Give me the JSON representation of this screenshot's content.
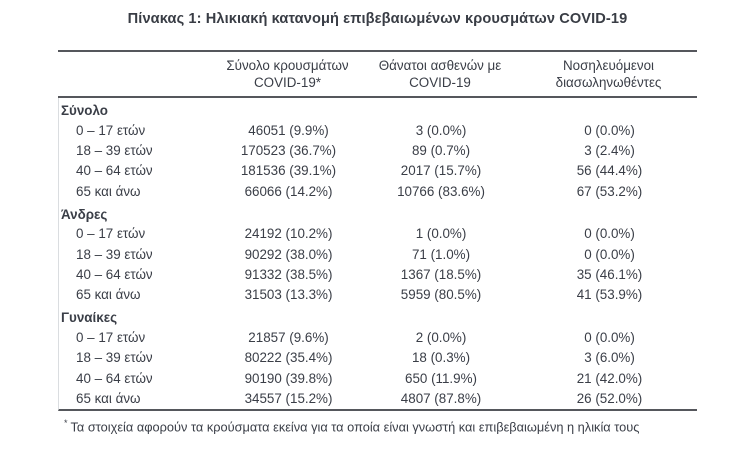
{
  "title": "Πίνακας 1: Ηλικιακή κατανομή επιβεβαιωμένων κρουσμάτων COVID-19",
  "header": {
    "col_cases": {
      "line1": "Σύνολο κρουσμάτων",
      "line2": "COVID-19*"
    },
    "col_deaths": {
      "line1": "Θάνατοι ασθενών με",
      "line2": "COVID-19"
    },
    "col_intubated": {
      "line1": "Νοσηλευόμενοι",
      "line2": "διασωληνωθέντες"
    }
  },
  "sections": [
    {
      "label": "Σύνολο",
      "rows": [
        {
          "label": "0 – 17 ετών",
          "cases": "46051 (9.9%)",
          "deaths": "3 (0.0%)",
          "intubated": "0 (0.0%)"
        },
        {
          "label": "18 – 39 ετών",
          "cases": "170523 (36.7%)",
          "deaths": "89 (0.7%)",
          "intubated": "3 (2.4%)"
        },
        {
          "label": "40 – 64 ετών",
          "cases": "181536 (39.1%)",
          "deaths": "2017 (15.7%)",
          "intubated": "56 (44.4%)"
        },
        {
          "label": "65 και άνω",
          "cases": "66066 (14.2%)",
          "deaths": "10766 (83.6%)",
          "intubated": "67 (53.2%)"
        }
      ]
    },
    {
      "label": "Άνδρες",
      "rows": [
        {
          "label": "0 – 17 ετών",
          "cases": "24192 (10.2%)",
          "deaths": "1 (0.0%)",
          "intubated": "0 (0.0%)"
        },
        {
          "label": "18 – 39 ετών",
          "cases": "90292 (38.0%)",
          "deaths": "71 (1.0%)",
          "intubated": "0 (0.0%)"
        },
        {
          "label": "40 – 64 ετών",
          "cases": "91332 (38.5%)",
          "deaths": "1367 (18.5%)",
          "intubated": "35 (46.1%)"
        },
        {
          "label": "65 και άνω",
          "cases": "31503 (13.3%)",
          "deaths": "5959 (80.5%)",
          "intubated": "41 (53.9%)"
        }
      ]
    },
    {
      "label": "Γυναίκες",
      "rows": [
        {
          "label": "0 – 17 ετών",
          "cases": "21857 (9.6%)",
          "deaths": "2 (0.0%)",
          "intubated": "0 (0.0%)"
        },
        {
          "label": "18 – 39 ετών",
          "cases": "80222 (35.4%)",
          "deaths": "18 (0.3%)",
          "intubated": "3 (6.0%)"
        },
        {
          "label": "40 – 64 ετών",
          "cases": "90190 (39.8%)",
          "deaths": "650 (11.9%)",
          "intubated": "21 (42.0%)"
        },
        {
          "label": "65 και άνω",
          "cases": "34557 (15.2%)",
          "deaths": "4807 (87.8%)",
          "intubated": "26 (52.0%)"
        }
      ]
    }
  ],
  "footnote": {
    "marker": "*",
    "text": "Τα στοιχεία αφορούν τα κρούσματα εκείνα για τα οποία είναι γνωστή και επιβεβαιωμένη η ηλικία τους"
  },
  "colors": {
    "text": "#3a3e47",
    "rule": "#55575c",
    "faint_border": "#dadde0",
    "background": "#ffffff"
  }
}
